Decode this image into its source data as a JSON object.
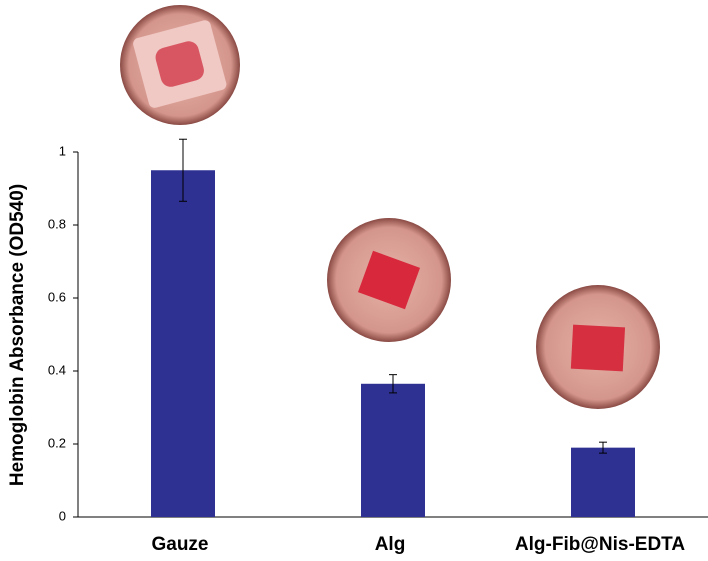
{
  "chart_data": {
    "type": "bar",
    "y_label": "Hemoglobin Absorbance (OD540)",
    "categories": [
      "Gauze",
      "Alg",
      "Alg-Fib@Nis-EDTA"
    ],
    "values": [
      0.95,
      0.365,
      0.19
    ],
    "errors": [
      0.085,
      0.025,
      0.015
    ],
    "color": "#2e3192",
    "ylim": [
      0,
      1
    ],
    "yticks": [
      0,
      0.2,
      0.4,
      0.6,
      0.8,
      1
    ],
    "grid": false
  }
}
